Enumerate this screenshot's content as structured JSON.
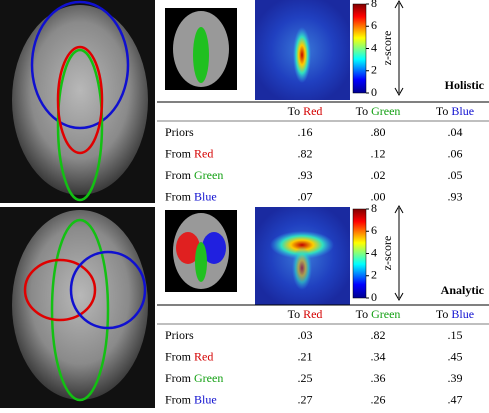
{
  "colorbar": {
    "label": "z-score",
    "ticks": [
      0,
      2,
      4,
      6,
      8
    ]
  },
  "classes": [
    {
      "name": "Red",
      "color": "#d40000"
    },
    {
      "name": "Green",
      "color": "#13a013"
    },
    {
      "name": "Blue",
      "color": "#1010d0"
    }
  ],
  "col_prefix": "To",
  "row_prefix": "From",
  "panels": [
    {
      "title": "Holistic",
      "priors": {
        "label": "Priors",
        "values": [
          ".16",
          ".80",
          ".04"
        ]
      },
      "from": [
        [
          ".82",
          ".12",
          ".06"
        ],
        [
          ".93",
          ".02",
          ".05"
        ],
        [
          ".07",
          ".00",
          ".93"
        ]
      ]
    },
    {
      "title": "Analytic",
      "priors": {
        "label": "Priors",
        "values": [
          ".03",
          ".82",
          ".15"
        ]
      },
      "from": [
        [
          ".21",
          ".34",
          ".45"
        ],
        [
          ".25",
          ".36",
          ".39"
        ],
        [
          ".27",
          ".26",
          ".47"
        ]
      ]
    }
  ]
}
